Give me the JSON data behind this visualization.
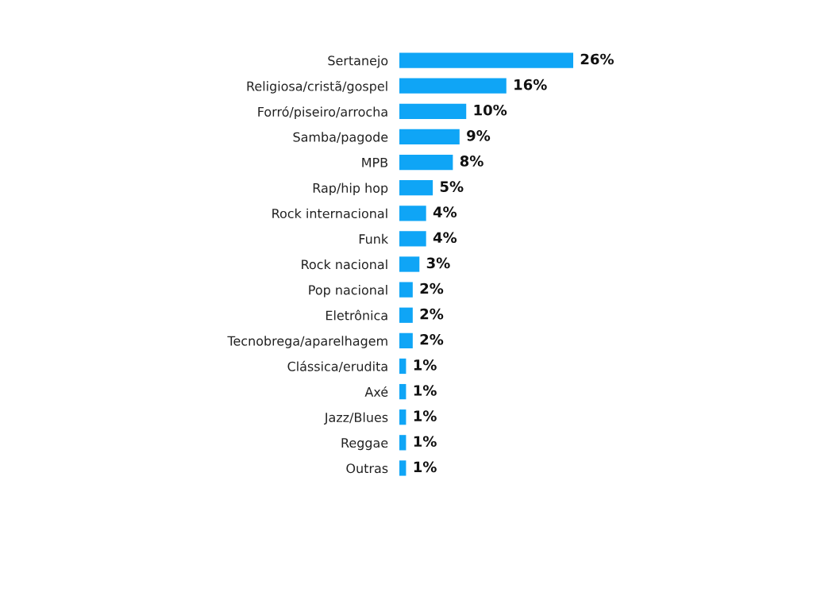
{
  "chart_data": {
    "type": "bar",
    "orientation": "horizontal",
    "categories": [
      "Sertanejo",
      "Religiosa/cristã/gospel",
      "Forró/piseiro/arrocha",
      "Samba/pagode",
      "MPB",
      "Rap/hip hop",
      "Rock internacional",
      "Funk",
      "Rock nacional",
      "Pop nacional",
      "Eletrônica",
      "Tecnobrega/aparelhagem",
      "Clássica/erudita",
      "Axé",
      "Jazz/Blues",
      "Reggae",
      "Outras"
    ],
    "values": [
      26,
      16,
      10,
      9,
      8,
      5,
      4,
      4,
      3,
      2,
      2,
      2,
      1,
      1,
      1,
      1,
      1
    ],
    "color": "#0fa5f6",
    "value_labels": [
      "26%",
      "16%",
      "10%",
      "9%",
      "8%",
      "5%",
      "4%",
      "4%",
      "3%",
      "2%",
      "2%",
      "2%",
      "1%",
      "1%",
      "1%",
      "1%",
      "1%"
    ],
    "xlim": [
      0,
      26
    ],
    "tick_labels": "y"
  }
}
